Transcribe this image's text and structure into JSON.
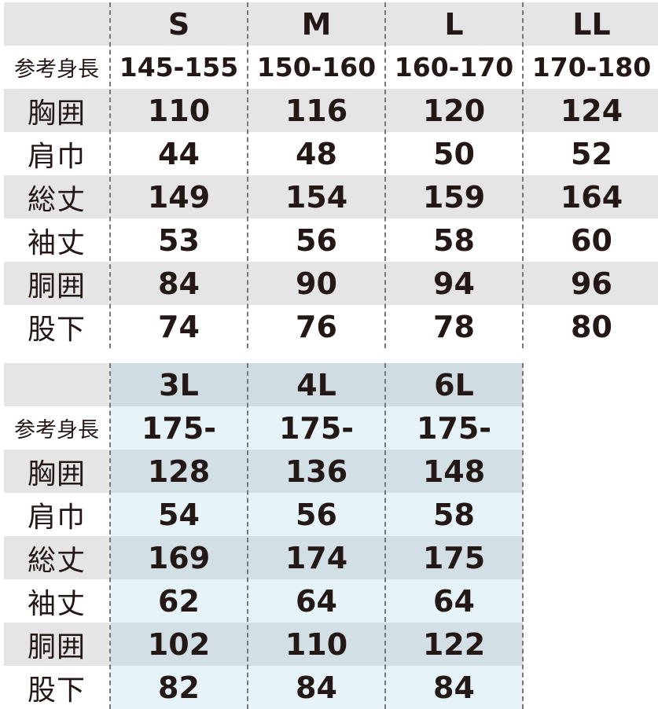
{
  "tables": [
    {
      "columns": [
        "S",
        "M",
        "L",
        "LL"
      ],
      "rows": [
        {
          "label": "参考身長",
          "values": [
            "145-155",
            "150-160",
            "160-170",
            "170-180"
          ]
        },
        {
          "label": "胸囲",
          "values": [
            "110",
            "116",
            "120",
            "124"
          ]
        },
        {
          "label": "肩巾",
          "values": [
            "44",
            "48",
            "50",
            "52"
          ]
        },
        {
          "label": "総丈",
          "values": [
            "149",
            "154",
            "159",
            "164"
          ]
        },
        {
          "label": "袖丈",
          "values": [
            "53",
            "56",
            "58",
            "60"
          ]
        },
        {
          "label": "胴囲",
          "values": [
            "84",
            "90",
            "94",
            "96"
          ]
        },
        {
          "label": "股下",
          "values": [
            "74",
            "76",
            "78",
            "80"
          ]
        }
      ]
    },
    {
      "columns": [
        "3L",
        "4L",
        "6L"
      ],
      "rows": [
        {
          "label": "参考身長",
          "values": [
            "175-",
            "175-",
            "175-"
          ]
        },
        {
          "label": "胸囲",
          "values": [
            "128",
            "136",
            "148"
          ]
        },
        {
          "label": "肩巾",
          "values": [
            "54",
            "56",
            "58"
          ]
        },
        {
          "label": "総丈",
          "values": [
            "169",
            "174",
            "175"
          ]
        },
        {
          "label": "袖丈",
          "values": [
            "62",
            "64",
            "64"
          ]
        },
        {
          "label": "胴囲",
          "values": [
            "102",
            "110",
            "122"
          ]
        },
        {
          "label": "股下",
          "values": [
            "82",
            "84",
            "84"
          ]
        }
      ]
    }
  ]
}
